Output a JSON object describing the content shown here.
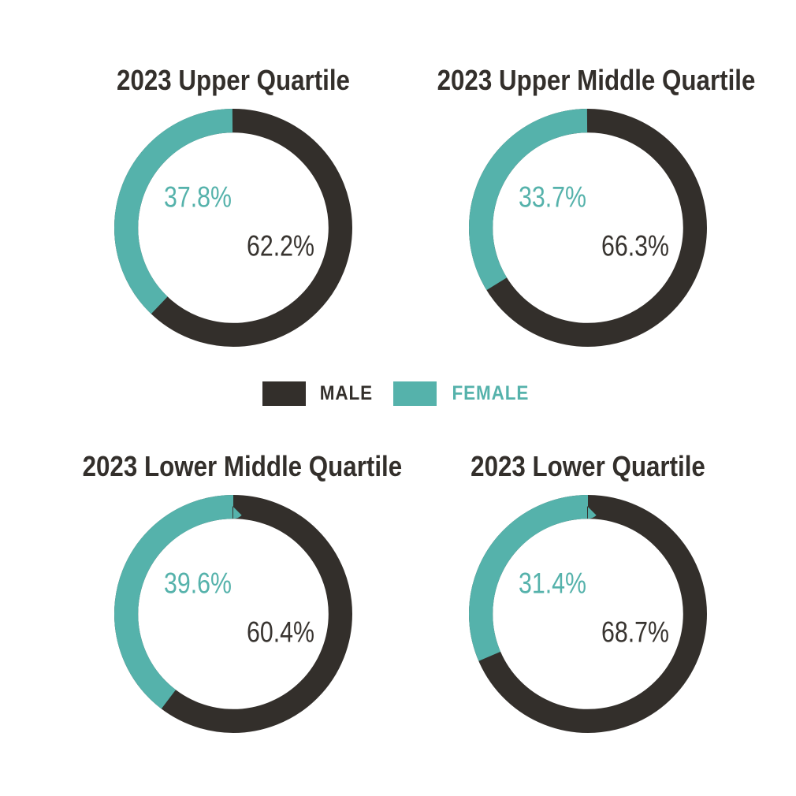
{
  "page": {
    "background": "#ffffff"
  },
  "colors": {
    "male": "#332f2b",
    "female": "#55b2ab"
  },
  "legend": {
    "position": "center-between-rows",
    "items": [
      {
        "label": "MALE",
        "color": "#332f2b"
      },
      {
        "label": "FEMALE",
        "color": "#55b2ab"
      }
    ]
  },
  "chart_data": [
    {
      "type": "pie",
      "title": "2023 Upper Quartile",
      "categories": [
        "Male",
        "Female"
      ],
      "values": [
        62.2,
        37.8
      ],
      "display_labels": [
        "62.2%",
        "37.8%"
      ],
      "colors": [
        "#332f2b",
        "#55b2ab"
      ],
      "start": "male-clockwise-from-top"
    },
    {
      "type": "pie",
      "title": "2023 Upper Middle Quartile",
      "categories": [
        "Male",
        "Female"
      ],
      "values": [
        66.3,
        33.7
      ],
      "display_labels": [
        "66.3%",
        "33.7%"
      ],
      "colors": [
        "#332f2b",
        "#55b2ab"
      ],
      "start": "male-clockwise-from-top"
    },
    {
      "type": "pie",
      "title": "2023 Lower Middle Quartile",
      "categories": [
        "Male",
        "Female"
      ],
      "values": [
        60.4,
        39.6
      ],
      "display_labels": [
        "60.4%",
        "39.6%"
      ],
      "colors": [
        "#332f2b",
        "#55b2ab"
      ],
      "start": "male-clockwise-from-top"
    },
    {
      "type": "pie",
      "title": "2023 Lower Quartile",
      "categories": [
        "Male",
        "Female"
      ],
      "values": [
        68.7,
        31.4
      ],
      "display_labels": [
        "68.7%",
        "31.4%"
      ],
      "colors": [
        "#332f2b",
        "#55b2ab"
      ],
      "start": "male-clockwise-from-top"
    }
  ]
}
